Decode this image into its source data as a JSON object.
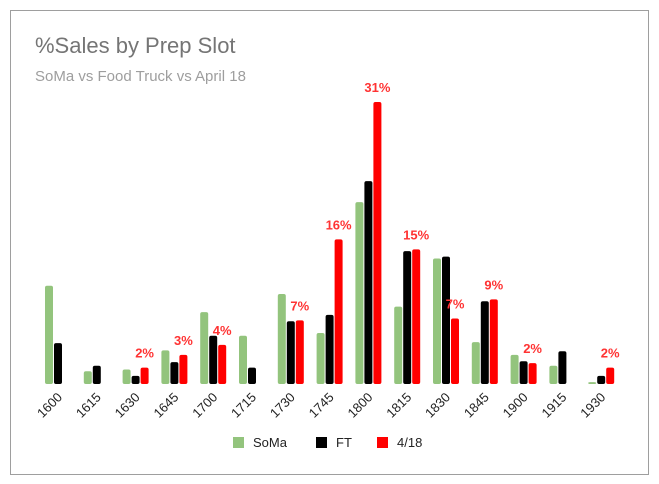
{
  "chart_data": {
    "type": "bar",
    "title": "%Sales by Prep Slot",
    "subtitle": "SoMa vs Food Truck vs April 18",
    "xlabel": "",
    "ylabel": "",
    "ylim": [
      0,
      32
    ],
    "grid": false,
    "legend_position": "bottom",
    "categories": [
      "1600",
      "1615",
      "1630",
      "1645",
      "1700",
      "1715",
      "1730",
      "1745",
      "1800",
      "1815",
      "1830",
      "1845",
      "1900",
      "1915",
      "1930"
    ],
    "series": [
      {
        "name": "SoMa",
        "color": "#93c47d",
        "values": [
          10.8,
          1.4,
          1.6,
          3.7,
          7.9,
          5.3,
          9.9,
          5.6,
          20.0,
          8.5,
          13.8,
          4.6,
          3.2,
          2.0,
          0.2
        ]
      },
      {
        "name": "FT",
        "color": "#000000",
        "values": [
          4.5,
          2.0,
          0.9,
          2.4,
          5.3,
          1.8,
          6.9,
          7.6,
          22.3,
          14.6,
          14.0,
          9.1,
          2.5,
          3.6,
          0.9
        ]
      },
      {
        "name": "4/18",
        "color": "#ff0000",
        "values": [
          null,
          null,
          1.8,
          3.2,
          4.3,
          null,
          7.0,
          15.9,
          31.0,
          14.8,
          7.2,
          9.3,
          2.3,
          null,
          1.8
        ]
      }
    ],
    "data_labels": {
      "series": "4/18",
      "labels": [
        null,
        null,
        "2%",
        "3%",
        "4%",
        null,
        "7%",
        "16%",
        "31%",
        "15%",
        "7%",
        "9%",
        "2%",
        null,
        "2%"
      ]
    }
  }
}
